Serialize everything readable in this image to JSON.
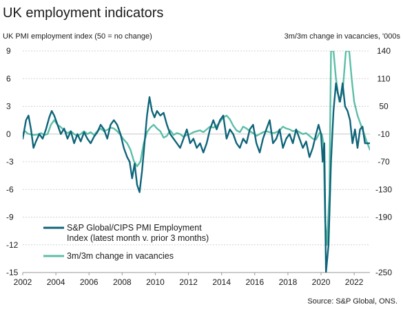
{
  "chart_data": {
    "type": "line",
    "title": "UK employment indicators",
    "left_axis_label": "UK PMI employment index (50 = no change)",
    "right_axis_label": "3m/3m change in vacancies, '000s",
    "source": "Source: S&P Global, ONS.",
    "x_ticks": [
      "2002",
      "2004",
      "2006",
      "2008",
      "2010",
      "2012",
      "2014",
      "2016",
      "2018",
      "2020",
      "2022"
    ],
    "xlim": [
      2002,
      2022.95
    ],
    "left_ticks": [
      "9",
      "6",
      "3",
      "0",
      "-3",
      "-6",
      "-9",
      "-12",
      "-15"
    ],
    "left_ylim": [
      -15,
      9
    ],
    "right_ticks": [
      "140",
      "110",
      "50",
      "-10",
      "-70",
      "-130",
      "-190",
      "-250"
    ],
    "right_ylim": [
      -250,
      140
    ],
    "right_scale_note": "right axis has a break near the top: 110 sits at the left-axis 6 gridline, 50 at 3, -10 at 0, with 60 per 3 left units below",
    "colors": {
      "pmi": "#0e6479",
      "vacancies": "#5cbea7",
      "grid": "#d0d0d0"
    },
    "series": [
      {
        "name": "S&P Global/CIPS PMI Employment Index (latest month v. prior 3 months)",
        "axis": "left",
        "color": "#0e6479",
        "points": [
          [
            2002.0,
            -0.5
          ],
          [
            2002.2,
            1.5
          ],
          [
            2002.35,
            2.0
          ],
          [
            2002.5,
            0.5
          ],
          [
            2002.65,
            -1.5
          ],
          [
            2002.8,
            -0.8
          ],
          [
            2003.0,
            0.0
          ],
          [
            2003.2,
            -0.5
          ],
          [
            2003.4,
            0.5
          ],
          [
            2003.6,
            1.8
          ],
          [
            2003.75,
            2.5
          ],
          [
            2003.9,
            2.0
          ],
          [
            2004.1,
            1.0
          ],
          [
            2004.3,
            0.0
          ],
          [
            2004.5,
            0.6
          ],
          [
            2004.7,
            -0.5
          ],
          [
            2004.9,
            0.3
          ],
          [
            2005.1,
            -1.0
          ],
          [
            2005.3,
            0.0
          ],
          [
            2005.5,
            -0.8
          ],
          [
            2005.7,
            0.2
          ],
          [
            2005.9,
            -0.5
          ],
          [
            2006.1,
            -1.0
          ],
          [
            2006.3,
            -0.3
          ],
          [
            2006.5,
            0.2
          ],
          [
            2006.7,
            1.0
          ],
          [
            2006.9,
            0.5
          ],
          [
            2007.1,
            -0.5
          ],
          [
            2007.3,
            1.0
          ],
          [
            2007.5,
            1.5
          ],
          [
            2007.7,
            1.0
          ],
          [
            2007.9,
            0.0
          ],
          [
            2008.1,
            -1.5
          ],
          [
            2008.3,
            -2.5
          ],
          [
            2008.45,
            -3.0
          ],
          [
            2008.6,
            -4.8
          ],
          [
            2008.75,
            -3.2
          ],
          [
            2008.9,
            -5.5
          ],
          [
            2009.05,
            -6.3
          ],
          [
            2009.2,
            -4.0
          ],
          [
            2009.35,
            -1.0
          ],
          [
            2009.5,
            2.0
          ],
          [
            2009.65,
            4.0
          ],
          [
            2009.8,
            2.5
          ],
          [
            2009.95,
            1.8
          ],
          [
            2010.1,
            2.5
          ],
          [
            2010.3,
            2.0
          ],
          [
            2010.5,
            2.3
          ],
          [
            2010.7,
            1.0
          ],
          [
            2010.9,
            0.0
          ],
          [
            2011.1,
            -0.5
          ],
          [
            2011.3,
            -1.0
          ],
          [
            2011.5,
            -1.5
          ],
          [
            2011.7,
            -0.5
          ],
          [
            2011.9,
            0.5
          ],
          [
            2012.1,
            -1.0
          ],
          [
            2012.3,
            -0.5
          ],
          [
            2012.5,
            -1.5
          ],
          [
            2012.7,
            -1.0
          ],
          [
            2012.9,
            -2.0
          ],
          [
            2013.1,
            -1.0
          ],
          [
            2013.3,
            0.5
          ],
          [
            2013.5,
            1.5
          ],
          [
            2013.7,
            0.5
          ],
          [
            2013.9,
            1.5
          ],
          [
            2014.1,
            2.0
          ],
          [
            2014.3,
            -0.5
          ],
          [
            2014.5,
            0.5
          ],
          [
            2014.7,
            0.0
          ],
          [
            2014.9,
            -1.0
          ],
          [
            2015.1,
            -1.5
          ],
          [
            2015.3,
            -0.5
          ],
          [
            2015.5,
            -1.0
          ],
          [
            2015.7,
            0.5
          ],
          [
            2015.9,
            1.0
          ],
          [
            2016.1,
            -1.0
          ],
          [
            2016.3,
            -2.0
          ],
          [
            2016.5,
            -0.5
          ],
          [
            2016.7,
            0.5
          ],
          [
            2016.9,
            1.5
          ],
          [
            2017.1,
            -1.0
          ],
          [
            2017.3,
            -0.5
          ],
          [
            2017.5,
            0.5
          ],
          [
            2017.7,
            -1.5
          ],
          [
            2017.9,
            -0.5
          ],
          [
            2018.1,
            0.0
          ],
          [
            2018.3,
            -1.0
          ],
          [
            2018.5,
            0.5
          ],
          [
            2018.7,
            -0.5
          ],
          [
            2018.9,
            -1.5
          ],
          [
            2019.1,
            -0.8
          ],
          [
            2019.3,
            -2.5
          ],
          [
            2019.5,
            -1.5
          ],
          [
            2019.7,
            0.0
          ],
          [
            2019.85,
            1.0
          ],
          [
            2020.0,
            0.0
          ],
          [
            2020.1,
            -3.0
          ],
          [
            2020.2,
            -1.0
          ],
          [
            2020.3,
            -15.0
          ],
          [
            2020.45,
            -12.0
          ],
          [
            2020.6,
            -3.0
          ],
          [
            2020.75,
            2.5
          ],
          [
            2020.9,
            5.5
          ],
          [
            2021.0,
            4.5
          ],
          [
            2021.15,
            3.5
          ],
          [
            2021.3,
            5.5
          ],
          [
            2021.45,
            3.0
          ],
          [
            2021.6,
            2.5
          ],
          [
            2021.75,
            1.5
          ],
          [
            2021.9,
            -1.0
          ],
          [
            2022.05,
            0.5
          ],
          [
            2022.2,
            -1.5
          ],
          [
            2022.35,
            0.5
          ],
          [
            2022.5,
            0.8
          ],
          [
            2022.65,
            -1.0
          ],
          [
            2022.8,
            -1.0
          ],
          [
            2022.95,
            -1.0
          ]
        ]
      },
      {
        "name": "3m/3m change in vacancies",
        "axis": "right",
        "color": "#5cbea7",
        "points": [
          [
            2002.0,
            -8
          ],
          [
            2002.15,
            -4
          ],
          [
            2002.3,
            -9
          ],
          [
            2002.5,
            -11
          ],
          [
            2002.7,
            -12
          ],
          [
            2002.9,
            -11
          ],
          [
            2003.1,
            -8
          ],
          [
            2003.3,
            -12
          ],
          [
            2003.5,
            -10
          ],
          [
            2003.7,
            10
          ],
          [
            2003.9,
            20
          ],
          [
            2004.1,
            10
          ],
          [
            2004.3,
            5
          ],
          [
            2004.5,
            -2
          ],
          [
            2004.7,
            -8
          ],
          [
            2004.9,
            -4
          ],
          [
            2005.1,
            -10
          ],
          [
            2005.3,
            -14
          ],
          [
            2005.5,
            -10
          ],
          [
            2005.7,
            -4
          ],
          [
            2005.9,
            -10
          ],
          [
            2006.1,
            -6
          ],
          [
            2006.3,
            -12
          ],
          [
            2006.5,
            -4
          ],
          [
            2006.7,
            2
          ],
          [
            2006.9,
            -4
          ],
          [
            2007.1,
            -1
          ],
          [
            2007.3,
            4
          ],
          [
            2007.5,
            2
          ],
          [
            2007.7,
            -4
          ],
          [
            2007.9,
            -12
          ],
          [
            2008.1,
            -22
          ],
          [
            2008.3,
            -30
          ],
          [
            2008.5,
            -44
          ],
          [
            2008.7,
            -68
          ],
          [
            2008.9,
            -80
          ],
          [
            2009.1,
            -70
          ],
          [
            2009.3,
            -30
          ],
          [
            2009.5,
            -6
          ],
          [
            2009.7,
            4
          ],
          [
            2009.9,
            10
          ],
          [
            2010.1,
            2
          ],
          [
            2010.3,
            -4
          ],
          [
            2010.5,
            -18
          ],
          [
            2010.7,
            -14
          ],
          [
            2010.9,
            -2
          ],
          [
            2011.1,
            -12
          ],
          [
            2011.3,
            -8
          ],
          [
            2011.5,
            -10
          ],
          [
            2011.7,
            -16
          ],
          [
            2011.9,
            -12
          ],
          [
            2012.1,
            -10
          ],
          [
            2012.3,
            -6
          ],
          [
            2012.5,
            -4
          ],
          [
            2012.7,
            -2
          ],
          [
            2012.9,
            -6
          ],
          [
            2013.1,
            0
          ],
          [
            2013.3,
            6
          ],
          [
            2013.5,
            4
          ],
          [
            2013.7,
            8
          ],
          [
            2013.9,
            16
          ],
          [
            2014.1,
            26
          ],
          [
            2014.3,
            30
          ],
          [
            2014.5,
            22
          ],
          [
            2014.7,
            8
          ],
          [
            2014.9,
            -2
          ],
          [
            2015.1,
            -6
          ],
          [
            2015.3,
            6
          ],
          [
            2015.5,
            2
          ],
          [
            2015.7,
            -4
          ],
          [
            2015.9,
            -8
          ],
          [
            2016.1,
            -14
          ],
          [
            2016.3,
            -10
          ],
          [
            2016.5,
            -6
          ],
          [
            2016.7,
            -4
          ],
          [
            2016.9,
            -6
          ],
          [
            2017.1,
            -8
          ],
          [
            2017.3,
            -6
          ],
          [
            2017.5,
            -2
          ],
          [
            2017.7,
            6
          ],
          [
            2017.9,
            2
          ],
          [
            2018.1,
            0
          ],
          [
            2018.3,
            -4
          ],
          [
            2018.5,
            -2
          ],
          [
            2018.7,
            -6
          ],
          [
            2018.9,
            -10
          ],
          [
            2019.1,
            -8
          ],
          [
            2019.3,
            -14
          ],
          [
            2019.5,
            -20
          ],
          [
            2019.7,
            -22
          ],
          [
            2019.9,
            -8
          ],
          [
            2020.05,
            -10
          ],
          [
            2020.15,
            -30
          ],
          [
            2020.25,
            -200
          ],
          [
            2020.35,
            -250
          ],
          [
            2020.5,
            -140
          ],
          [
            2020.6,
            140
          ],
          [
            2020.75,
            140
          ],
          [
            2020.9,
            110
          ],
          [
            2021.1,
            60
          ],
          [
            2021.3,
            80
          ],
          [
            2021.5,
            140
          ],
          [
            2021.7,
            140
          ],
          [
            2021.85,
            110
          ],
          [
            2022.0,
            60
          ],
          [
            2022.2,
            30
          ],
          [
            2022.4,
            10
          ],
          [
            2022.6,
            -10
          ],
          [
            2022.75,
            -26
          ],
          [
            2022.95,
            -44
          ]
        ]
      }
    ],
    "legend": [
      {
        "line1": "S&P Global/CIPS PMI Employment",
        "line2": "Index (latest month v. prior 3 months)",
        "color": "#0e6479"
      },
      {
        "line1": "3m/3m change in vacancies",
        "line2": "",
        "color": "#5cbea7"
      }
    ]
  }
}
